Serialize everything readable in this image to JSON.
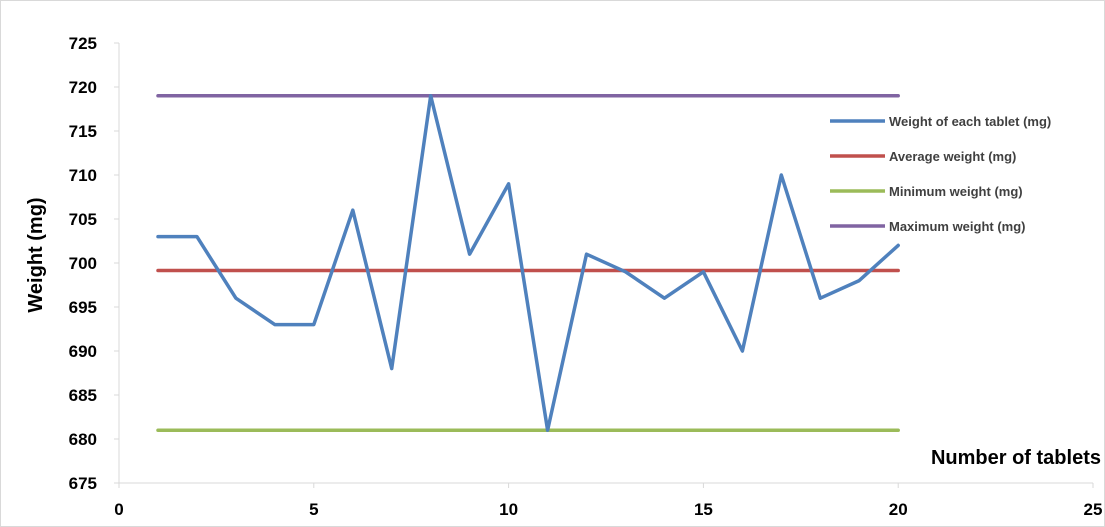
{
  "chart_data": {
    "type": "line",
    "title": "",
    "xlabel": "Number of tablets",
    "ylabel": "Weight (mg)",
    "xlim": [
      0,
      25
    ],
    "ylim": [
      675,
      725
    ],
    "xticks": [
      "0",
      "5",
      "10",
      "15",
      "20",
      "25"
    ],
    "yticks": [
      "675",
      "680",
      "685",
      "690",
      "695",
      "700",
      "705",
      "710",
      "715",
      "720",
      "725"
    ],
    "grid": false,
    "legend_position": "right",
    "series": [
      {
        "name": "Weight of each tablet (mg)",
        "color": "#4f81bd",
        "x": [
          1,
          2,
          3,
          4,
          5,
          6,
          7,
          8,
          9,
          10,
          11,
          12,
          13,
          14,
          15,
          16,
          17,
          18,
          19,
          20
        ],
        "y": [
          703,
          703,
          696,
          693,
          693,
          706,
          688,
          719,
          701,
          709,
          681,
          701,
          699,
          696,
          699,
          690,
          710,
          696,
          698,
          702
        ]
      },
      {
        "name": "Average weight (mg)",
        "color": "#c0504d",
        "x": [
          1,
          20
        ],
        "y": [
          699.15,
          699.15
        ]
      },
      {
        "name": "Minimum weight (mg)",
        "color": "#9bbb59",
        "x": [
          1,
          20
        ],
        "y": [
          681,
          681
        ]
      },
      {
        "name": "Maximum weight (mg)",
        "color": "#8064a2",
        "x": [
          1,
          20
        ],
        "y": [
          719,
          719
        ]
      }
    ]
  }
}
